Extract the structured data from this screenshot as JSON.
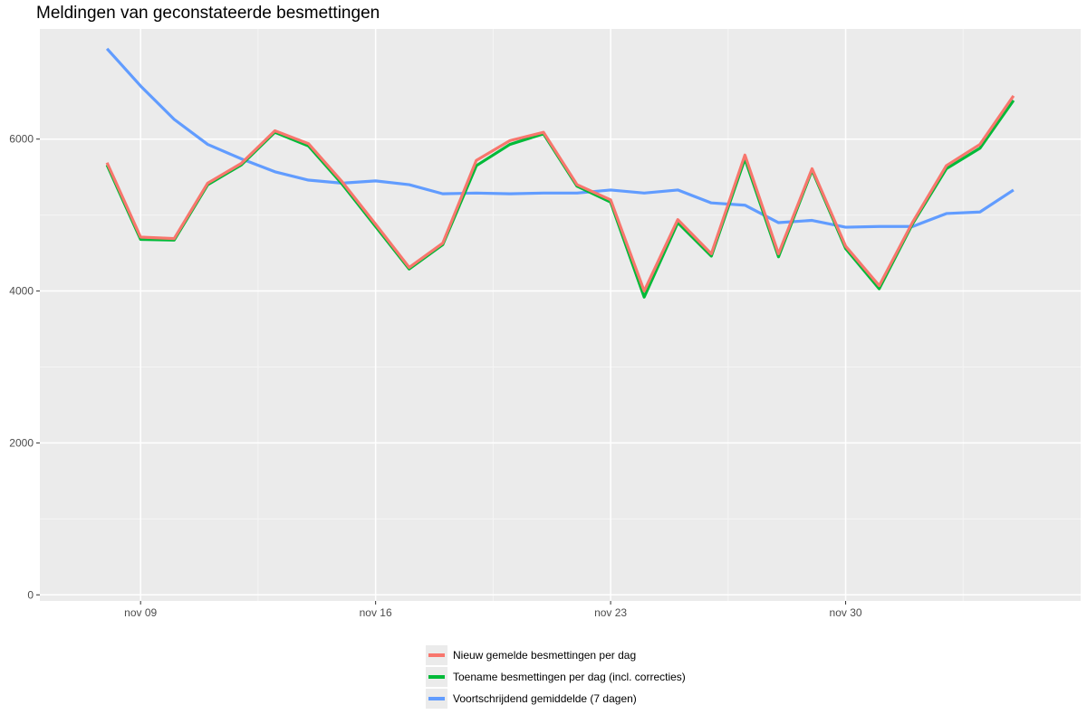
{
  "chart_data": {
    "type": "line",
    "title": "Meldingen van geconstateerde besmettingen",
    "xlabel": "",
    "ylabel": "",
    "x": [
      "2020-11-08",
      "2020-11-09",
      "2020-11-10",
      "2020-11-11",
      "2020-11-12",
      "2020-11-13",
      "2020-11-14",
      "2020-11-15",
      "2020-11-16",
      "2020-11-17",
      "2020-11-18",
      "2020-11-19",
      "2020-11-20",
      "2020-11-21",
      "2020-11-22",
      "2020-11-23",
      "2020-11-24",
      "2020-11-25",
      "2020-11-26",
      "2020-11-27",
      "2020-11-28",
      "2020-11-29",
      "2020-11-30",
      "2020-12-01",
      "2020-12-02",
      "2020-12-03",
      "2020-12-04",
      "2020-12-05"
    ],
    "x_ticks": [
      {
        "date": "2020-11-09",
        "label": "nov 09"
      },
      {
        "date": "2020-11-16",
        "label": "nov 16"
      },
      {
        "date": "2020-11-23",
        "label": "nov 23"
      },
      {
        "date": "2020-11-30",
        "label": "nov 30"
      }
    ],
    "y_ticks": [
      0,
      2000,
      4000,
      6000
    ],
    "ylim": [
      -80,
      7450
    ],
    "xlim": [
      "2020-11-06",
      "2020-12-07"
    ],
    "grid": true,
    "legend_position": "bottom",
    "series": [
      {
        "name": "Nieuw gemelde besmettingen per dag",
        "color": "#f8766d",
        "values": [
          5690,
          4710,
          4690,
          5420,
          5680,
          6110,
          5940,
          5440,
          4880,
          4310,
          4630,
          5720,
          5980,
          6090,
          5400,
          5200,
          4000,
          4940,
          4490,
          5790,
          4490,
          5610,
          4590,
          4070,
          4910,
          5650,
          5930,
          6570
        ]
      },
      {
        "name": "Toename besmettingen per dag (incl. correcties)",
        "color": "#00ba38",
        "values": [
          5660,
          4680,
          4670,
          5400,
          5660,
          6090,
          5910,
          5410,
          4850,
          4290,
          4610,
          5650,
          5930,
          6070,
          5380,
          5170,
          3920,
          4900,
          4460,
          5740,
          4450,
          5590,
          4560,
          4030,
          4890,
          5610,
          5880,
          6510
        ]
      },
      {
        "name": "Voortschrijdend gemiddelde (7 dagen)",
        "color": "#619cff",
        "values": [
          7190,
          6700,
          6260,
          5930,
          5740,
          5570,
          5460,
          5420,
          5450,
          5400,
          5280,
          5290,
          5280,
          5290,
          5290,
          5330,
          5290,
          5330,
          5160,
          5130,
          4900,
          4930,
          4840,
          4850,
          4850,
          5020,
          5040,
          5330
        ]
      }
    ]
  }
}
